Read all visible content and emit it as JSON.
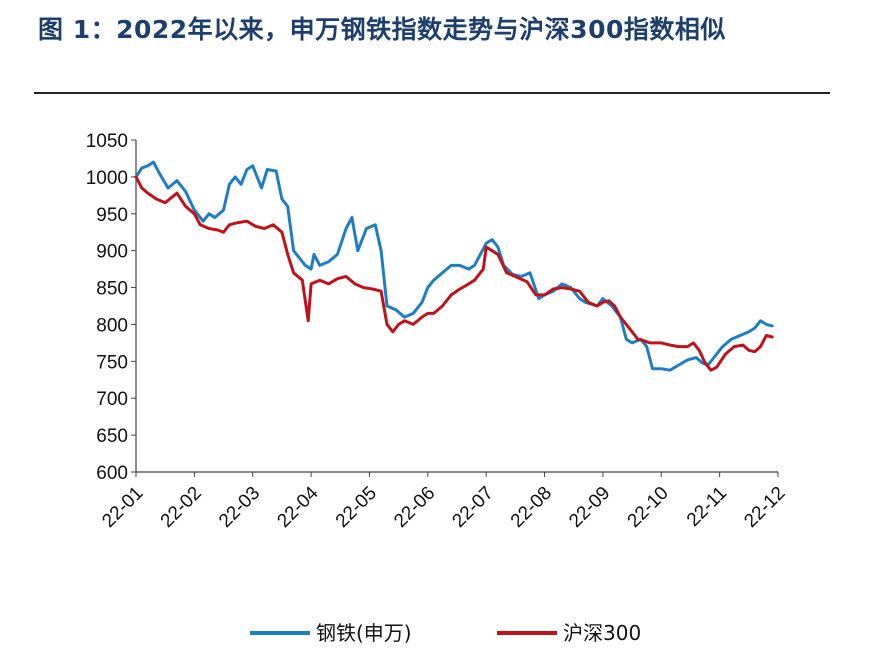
{
  "title": "图 1：2022年以来，申万钢铁指数走势与沪深300指数相似",
  "chart_data": {
    "type": "line",
    "ylim": [
      600,
      1050
    ],
    "yticks": [
      "600",
      "650",
      "700",
      "750",
      "800",
      "850",
      "900",
      "950",
      "1000",
      "1050"
    ],
    "xticks": [
      "22-01",
      "22-02",
      "22-03",
      "22-04",
      "22-05",
      "22-06",
      "22-07",
      "22-08",
      "22-09",
      "22-10",
      "22-11",
      "22-12"
    ],
    "grid": false,
    "legend_position": "bottom",
    "series": [
      {
        "name": "钢铁(申万)",
        "color": "#1f7ec2",
        "points": [
          [
            0.0,
            1000
          ],
          [
            0.1,
            1012
          ],
          [
            0.2,
            1015
          ],
          [
            0.3,
            1020
          ],
          [
            0.4,
            1005
          ],
          [
            0.55,
            985
          ],
          [
            0.7,
            995
          ],
          [
            0.85,
            980
          ],
          [
            1.0,
            955
          ],
          [
            1.15,
            940
          ],
          [
            1.25,
            950
          ],
          [
            1.35,
            945
          ],
          [
            1.5,
            955
          ],
          [
            1.6,
            990
          ],
          [
            1.7,
            1000
          ],
          [
            1.8,
            990
          ],
          [
            1.9,
            1010
          ],
          [
            2.0,
            1015
          ],
          [
            2.15,
            985
          ],
          [
            2.25,
            1010
          ],
          [
            2.4,
            1008
          ],
          [
            2.5,
            970
          ],
          [
            2.6,
            960
          ],
          [
            2.7,
            900
          ],
          [
            2.8,
            890
          ],
          [
            2.9,
            880
          ],
          [
            3.0,
            875
          ],
          [
            3.05,
            895
          ],
          [
            3.15,
            880
          ],
          [
            3.3,
            885
          ],
          [
            3.45,
            895
          ],
          [
            3.6,
            930
          ],
          [
            3.7,
            945
          ],
          [
            3.8,
            900
          ],
          [
            3.95,
            930
          ],
          [
            4.1,
            935
          ],
          [
            4.2,
            900
          ],
          [
            4.3,
            825
          ],
          [
            4.45,
            820
          ],
          [
            4.6,
            810
          ],
          [
            4.75,
            815
          ],
          [
            4.9,
            830
          ],
          [
            5.0,
            850
          ],
          [
            5.1,
            860
          ],
          [
            5.25,
            870
          ],
          [
            5.4,
            880
          ],
          [
            5.55,
            880
          ],
          [
            5.7,
            875
          ],
          [
            5.8,
            880
          ],
          [
            6.0,
            910
          ],
          [
            6.1,
            915
          ],
          [
            6.2,
            905
          ],
          [
            6.3,
            880
          ],
          [
            6.45,
            868
          ],
          [
            6.6,
            865
          ],
          [
            6.75,
            870
          ],
          [
            6.9,
            835
          ],
          [
            7.0,
            840
          ],
          [
            7.15,
            845
          ],
          [
            7.3,
            855
          ],
          [
            7.45,
            850
          ],
          [
            7.6,
            835
          ],
          [
            7.7,
            830
          ],
          [
            7.9,
            825
          ],
          [
            8.0,
            835
          ],
          [
            8.15,
            825
          ],
          [
            8.3,
            810
          ],
          [
            8.4,
            780
          ],
          [
            8.5,
            775
          ],
          [
            8.65,
            780
          ],
          [
            8.75,
            770
          ],
          [
            8.85,
            740
          ],
          [
            9.0,
            740
          ],
          [
            9.15,
            738
          ],
          [
            9.3,
            745
          ],
          [
            9.45,
            752
          ],
          [
            9.6,
            755
          ],
          [
            9.7,
            748
          ],
          [
            9.8,
            745
          ],
          [
            9.95,
            760
          ],
          [
            10.05,
            770
          ],
          [
            10.2,
            780
          ],
          [
            10.35,
            785
          ],
          [
            10.5,
            790
          ],
          [
            10.6,
            795
          ],
          [
            10.7,
            805
          ],
          [
            10.8,
            800
          ],
          [
            10.9,
            798
          ]
        ]
      },
      {
        "name": "沪深300",
        "color": "#c0121a",
        "points": [
          [
            0.0,
            1000
          ],
          [
            0.1,
            985
          ],
          [
            0.2,
            978
          ],
          [
            0.35,
            970
          ],
          [
            0.5,
            965
          ],
          [
            0.7,
            978
          ],
          [
            0.85,
            960
          ],
          [
            1.0,
            950
          ],
          [
            1.1,
            935
          ],
          [
            1.25,
            930
          ],
          [
            1.4,
            928
          ],
          [
            1.5,
            925
          ],
          [
            1.6,
            935
          ],
          [
            1.75,
            938
          ],
          [
            1.9,
            940
          ],
          [
            2.05,
            933
          ],
          [
            2.2,
            930
          ],
          [
            2.35,
            935
          ],
          [
            2.5,
            925
          ],
          [
            2.6,
            895
          ],
          [
            2.7,
            870
          ],
          [
            2.85,
            860
          ],
          [
            2.95,
            805
          ],
          [
            3.0,
            855
          ],
          [
            3.15,
            860
          ],
          [
            3.3,
            855
          ],
          [
            3.45,
            862
          ],
          [
            3.6,
            865
          ],
          [
            3.75,
            855
          ],
          [
            3.9,
            850
          ],
          [
            4.05,
            848
          ],
          [
            4.2,
            845
          ],
          [
            4.3,
            800
          ],
          [
            4.4,
            790
          ],
          [
            4.5,
            800
          ],
          [
            4.6,
            805
          ],
          [
            4.75,
            800
          ],
          [
            4.9,
            810
          ],
          [
            5.0,
            815
          ],
          [
            5.1,
            815
          ],
          [
            5.25,
            825
          ],
          [
            5.4,
            840
          ],
          [
            5.55,
            848
          ],
          [
            5.7,
            855
          ],
          [
            5.8,
            860
          ],
          [
            5.95,
            875
          ],
          [
            6.0,
            905
          ],
          [
            6.1,
            900
          ],
          [
            6.2,
            895
          ],
          [
            6.35,
            870
          ],
          [
            6.5,
            865
          ],
          [
            6.7,
            858
          ],
          [
            6.85,
            840
          ],
          [
            7.0,
            840
          ],
          [
            7.15,
            848
          ],
          [
            7.3,
            850
          ],
          [
            7.45,
            848
          ],
          [
            7.6,
            845
          ],
          [
            7.75,
            830
          ],
          [
            7.9,
            825
          ],
          [
            8.0,
            830
          ],
          [
            8.1,
            832
          ],
          [
            8.2,
            825
          ],
          [
            8.3,
            810
          ],
          [
            8.4,
            800
          ],
          [
            8.5,
            790
          ],
          [
            8.6,
            780
          ],
          [
            8.7,
            778
          ],
          [
            8.8,
            775
          ],
          [
            9.0,
            775
          ],
          [
            9.15,
            772
          ],
          [
            9.3,
            770
          ],
          [
            9.45,
            770
          ],
          [
            9.55,
            775
          ],
          [
            9.65,
            765
          ],
          [
            9.75,
            748
          ],
          [
            9.85,
            738
          ],
          [
            9.95,
            742
          ],
          [
            10.1,
            760
          ],
          [
            10.25,
            770
          ],
          [
            10.4,
            772
          ],
          [
            10.5,
            765
          ],
          [
            10.6,
            763
          ],
          [
            10.7,
            770
          ],
          [
            10.8,
            785
          ],
          [
            10.9,
            783
          ]
        ]
      }
    ]
  }
}
